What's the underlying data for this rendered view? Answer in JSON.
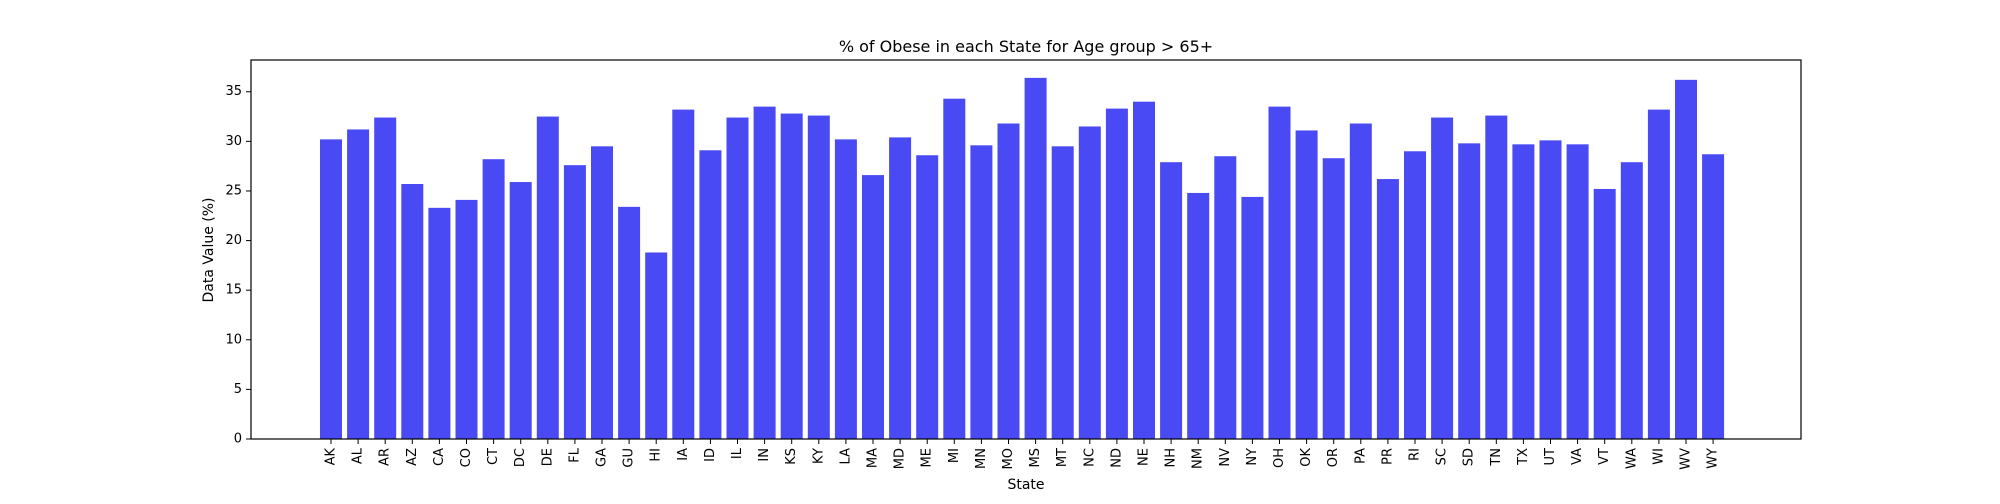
{
  "chart_data": {
    "type": "bar",
    "title": "% of Obese in each State for Age group > 65+",
    "xlabel": "State",
    "ylabel": "Data Value (%)",
    "ylim": [
      0,
      38.2
    ],
    "yticks": [
      0,
      5,
      10,
      15,
      20,
      25,
      30,
      35
    ],
    "grid": false,
    "bar_color": "#4a4af4",
    "categories": [
      "AK",
      "AL",
      "AR",
      "AZ",
      "CA",
      "CO",
      "CT",
      "DC",
      "DE",
      "FL",
      "GA",
      "GU",
      "HI",
      "IA",
      "ID",
      "IL",
      "IN",
      "KS",
      "KY",
      "LA",
      "MA",
      "MD",
      "ME",
      "MI",
      "MN",
      "MO",
      "MS",
      "MT",
      "NC",
      "ND",
      "NE",
      "NH",
      "NM",
      "NV",
      "NY",
      "OH",
      "OK",
      "OR",
      "PA",
      "PR",
      "RI",
      "SC",
      "SD",
      "TN",
      "TX",
      "UT",
      "VA",
      "VT",
      "WA",
      "WI",
      "WV",
      "WY"
    ],
    "values": [
      30.2,
      31.2,
      32.4,
      25.7,
      23.3,
      24.1,
      28.2,
      25.9,
      32.5,
      27.6,
      29.5,
      23.4,
      18.8,
      33.2,
      29.1,
      32.4,
      33.5,
      32.8,
      32.6,
      30.2,
      26.6,
      30.4,
      28.6,
      34.3,
      29.6,
      31.8,
      36.4,
      29.5,
      31.5,
      33.3,
      34.0,
      27.9,
      24.8,
      28.5,
      24.4,
      33.5,
      31.1,
      28.3,
      31.8,
      26.2,
      29.0,
      32.4,
      29.8,
      32.6,
      29.7,
      30.1,
      29.7,
      25.2,
      27.9,
      33.2,
      36.2,
      28.7
    ]
  }
}
